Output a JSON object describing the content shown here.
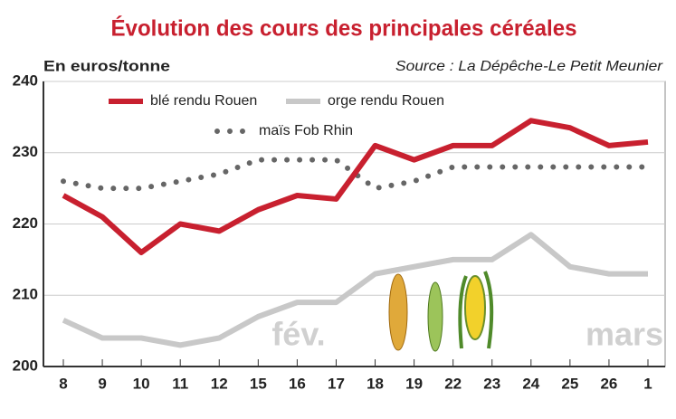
{
  "chart_data": {
    "type": "line",
    "title": "Évolution des cours des principales céréales",
    "y_label": "En euros/tonne",
    "source": "Source : La Dépêche-Le Petit Meunier",
    "annotations": [
      "fév.",
      "mars"
    ],
    "categories": [
      "8",
      "9",
      "10",
      "11",
      "12",
      "15",
      "16",
      "17",
      "18",
      "19",
      "22",
      "23",
      "24",
      "25",
      "26",
      "1"
    ],
    "series": [
      {
        "name": "blé rendu Rouen",
        "color": "#c8202f",
        "line_style": "solid",
        "values": [
          224,
          221,
          216,
          220,
          219,
          222,
          224,
          223.5,
          231,
          229,
          231,
          231,
          234.5,
          233.5,
          231,
          231.5
        ]
      },
      {
        "name": "orge rendu Rouen",
        "color": "#c8c8c8",
        "line_style": "solid",
        "values": [
          206.5,
          204,
          204,
          203,
          204,
          207,
          209,
          209,
          213,
          214,
          215,
          215,
          218.5,
          214,
          213,
          213
        ]
      },
      {
        "name": "maïs Fob Rhin",
        "color": "#666666",
        "line_style": "dotted",
        "values": [
          226,
          225,
          225,
          226,
          227,
          229,
          229,
          229,
          225,
          226,
          228,
          228,
          228,
          228,
          228,
          228
        ]
      }
    ],
    "ylim": [
      200,
      240
    ],
    "yticks": [
      200,
      210,
      220,
      230,
      240
    ],
    "grid": true
  }
}
